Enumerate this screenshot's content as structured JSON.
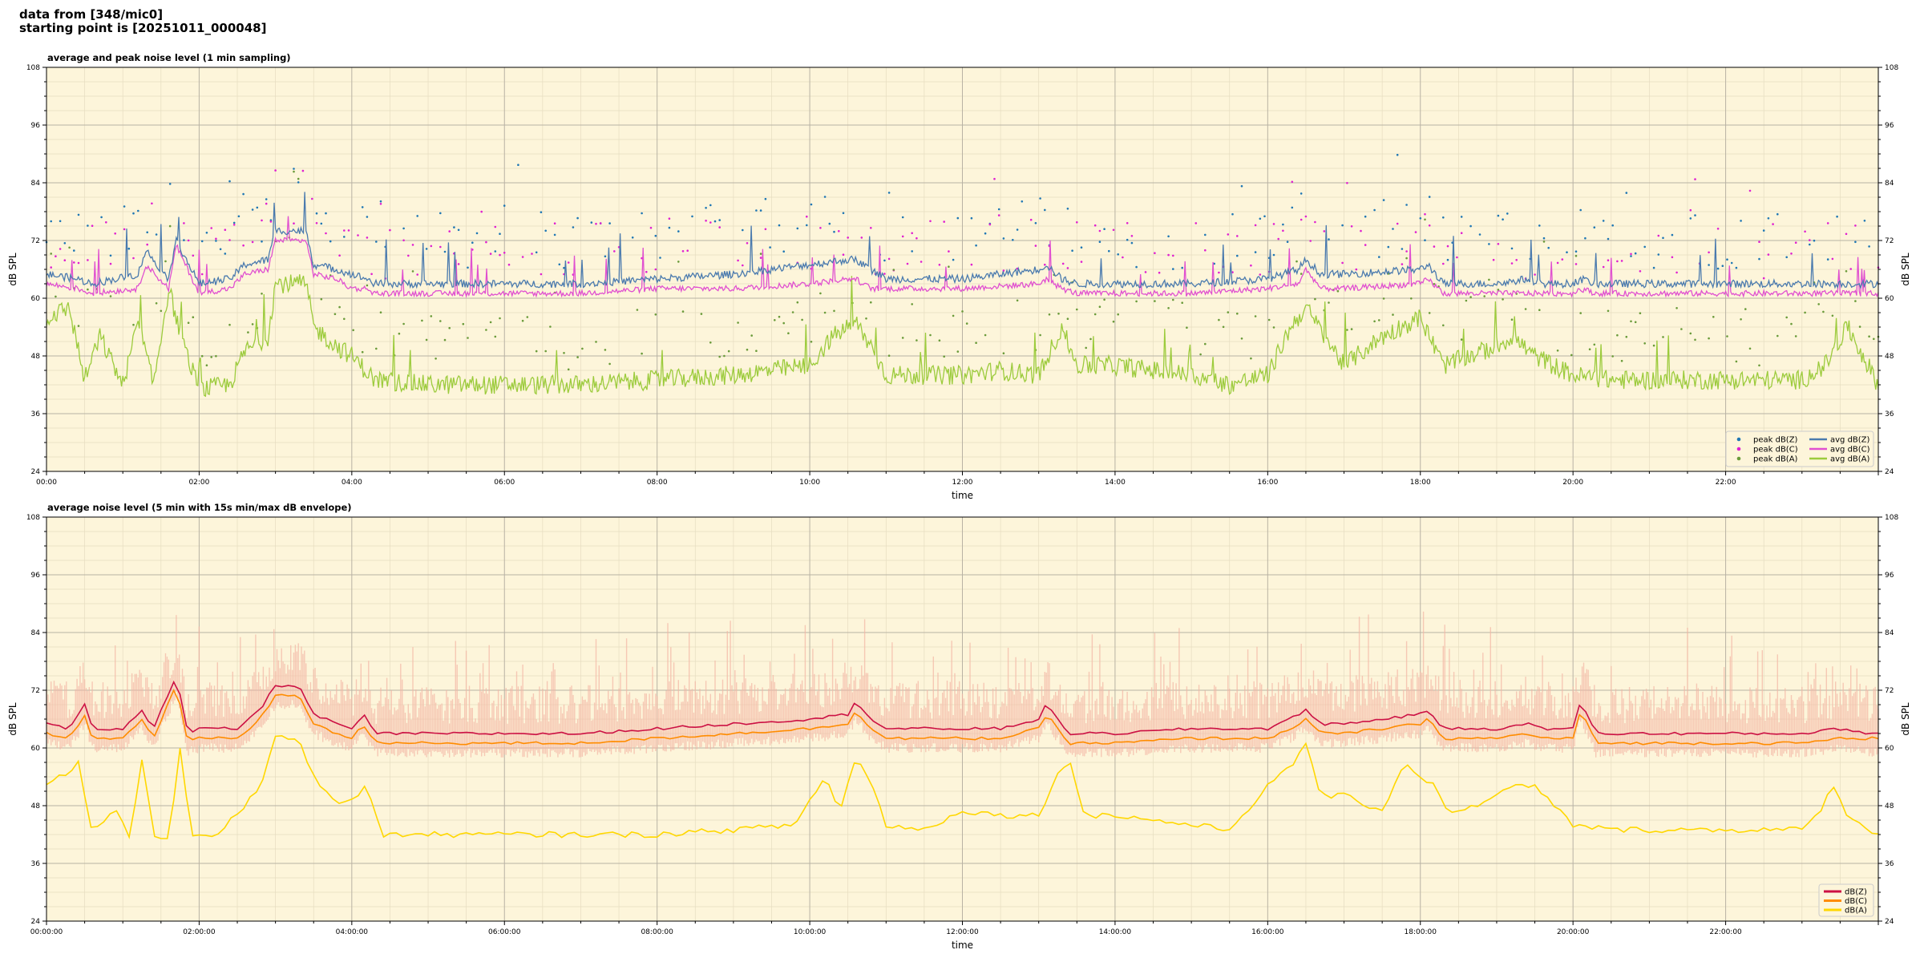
{
  "header": {
    "line1": "data from [348/mic0]",
    "line2": "starting point is [20251011_000048]"
  },
  "chart_data": [
    {
      "type": "line",
      "title": "average and peak noise level (1 min sampling)",
      "xlabel": "time",
      "ylabel": "dB SPL",
      "ylim": [
        24,
        108
      ],
      "xlim_hours": [
        0,
        24
      ],
      "yticks": [
        24,
        36,
        48,
        60,
        72,
        84,
        96,
        108
      ],
      "xtick_labels": [
        "00:00",
        "02:00",
        "04:00",
        "06:00",
        "08:00",
        "10:00",
        "12:00",
        "14:00",
        "16:00",
        "18:00",
        "20:00",
        "22:00"
      ],
      "grid": true,
      "background": "#fdf5da",
      "legend_position": "lower-right",
      "legend_columns": 2,
      "series": [
        {
          "name": "peak dB(Z)",
          "kind": "scatter",
          "color": "#1f77b4"
        },
        {
          "name": "peak dB(C)",
          "kind": "scatter",
          "color": "#e020d0"
        },
        {
          "name": "peak dB(A)",
          "kind": "scatter",
          "color": "#6a9b3a"
        },
        {
          "name": "avg dB(Z)",
          "kind": "line",
          "color": "#4a7aae"
        },
        {
          "name": "avg dB(C)",
          "kind": "line",
          "color": "#e050d0"
        },
        {
          "name": "avg dB(A)",
          "kind": "line",
          "color": "#9ccb3c"
        }
      ],
      "profiles": {
        "note_units": "x in hours since start, y in dB SPL (approximate readings)",
        "avg_dBZ": {
          "x": [
            0,
            0.4,
            0.6,
            1.2,
            1.3,
            1.6,
            1.7,
            2.0,
            2.4,
            2.6,
            2.9,
            3.0,
            3.4,
            3.5,
            3.8,
            4.0,
            4.2,
            4.3,
            5,
            6,
            7,
            8,
            9,
            10,
            10.5,
            10.6,
            10.8,
            11,
            12,
            13,
            13.1,
            13.3,
            13.5,
            14,
            15,
            16,
            16.4,
            16.5,
            16.7,
            17,
            18,
            18.1,
            18.3,
            19,
            19.4,
            19.6,
            20,
            20.1,
            20.3,
            20.5,
            21,
            22,
            23,
            23.5,
            23.9,
            24
          ],
          "y": [
            65,
            64,
            63,
            65,
            70,
            64,
            72,
            63,
            64,
            67,
            68,
            74,
            74,
            67,
            66,
            65,
            64,
            63,
            63,
            63,
            63,
            64,
            65,
            67,
            68,
            68,
            66,
            64,
            64,
            66,
            67,
            64,
            63,
            63,
            63,
            64,
            66,
            68,
            65,
            65,
            66,
            67,
            63,
            63,
            64,
            63,
            63,
            64,
            63,
            63,
            63,
            63,
            63,
            63,
            63,
            63
          ]
        },
        "avg_dBC": {
          "x": [
            0,
            0.4,
            0.6,
            1.2,
            1.3,
            1.6,
            1.7,
            2.0,
            2.4,
            2.6,
            2.9,
            3.0,
            3.4,
            3.5,
            3.8,
            4.0,
            4.2,
            4.3,
            5,
            6,
            7,
            8,
            9,
            10,
            10.5,
            10.6,
            10.8,
            11,
            12,
            13,
            13.1,
            13.3,
            13.5,
            14,
            15,
            16,
            16.4,
            16.5,
            16.7,
            17,
            18,
            18.1,
            18.3,
            19,
            19.4,
            19.6,
            20,
            20.1,
            20.3,
            20.5,
            21,
            22,
            23,
            23.5,
            23.9,
            24
          ],
          "y": [
            63,
            62,
            61,
            62,
            67,
            62,
            71,
            61,
            62,
            65,
            66,
            72,
            72,
            65,
            64,
            62,
            62,
            61,
            61,
            61,
            61,
            62,
            62,
            63,
            64,
            64,
            62,
            62,
            62,
            63,
            64,
            62,
            61,
            61,
            61,
            62,
            63,
            66,
            62,
            62,
            63,
            64,
            61,
            61,
            61,
            61,
            61,
            62,
            61,
            61,
            61,
            61,
            61,
            61,
            61,
            61
          ]
        },
        "avg_dBA": {
          "x": [
            0,
            0.3,
            0.5,
            0.7,
            1.0,
            1.2,
            1.4,
            1.6,
            1.8,
            2.0,
            2.4,
            2.6,
            2.9,
            3.0,
            3.4,
            3.5,
            3.8,
            4.0,
            4.3,
            5,
            6,
            7,
            8,
            9,
            10,
            10.3,
            10.6,
            10.8,
            11,
            12,
            12.5,
            13,
            13.3,
            13.5,
            14,
            15,
            15.5,
            16,
            16.3,
            16.5,
            17,
            17.5,
            18,
            18.3,
            19,
            19.2,
            19.5,
            20,
            20.5,
            21,
            22,
            23,
            23.3,
            23.6,
            24
          ],
          "y": [
            56,
            58,
            43,
            52,
            42,
            55,
            42,
            62,
            50,
            41,
            42,
            49,
            52,
            63,
            63,
            54,
            50,
            48,
            43,
            42,
            42,
            42,
            43,
            44,
            46,
            52,
            55,
            50,
            44,
            44,
            45,
            44,
            54,
            46,
            46,
            44,
            42,
            44,
            54,
            58,
            46,
            52,
            56,
            46,
            50,
            52,
            48,
            44,
            43,
            43,
            43,
            43,
            46,
            54,
            42
          ]
        }
      }
    },
    {
      "type": "line",
      "title": "average noise level (5 min with 15s min/max dB envelope)",
      "xlabel": "time",
      "ylabel": "dB SPL",
      "ylim": [
        24,
        108
      ],
      "xlim_hours": [
        0,
        24
      ],
      "yticks": [
        24,
        36,
        48,
        60,
        72,
        84,
        96,
        108
      ],
      "xtick_labels": [
        "00:00:00",
        "02:00:00",
        "04:00:00",
        "06:00:00",
        "08:00:00",
        "10:00:00",
        "12:00:00",
        "14:00:00",
        "16:00:00",
        "18:00:00",
        "20:00:00",
        "22:00:00"
      ],
      "grid": true,
      "background": "#fdf5da",
      "legend_position": "lower-right",
      "legend_columns": 1,
      "envelope_color": "#f4b6a4",
      "series": [
        {
          "name": "dB(Z)",
          "kind": "line",
          "color": "#cc1144"
        },
        {
          "name": "dB(C)",
          "kind": "line",
          "color": "#ff8c00"
        },
        {
          "name": "dB(A)",
          "kind": "line",
          "color": "#ffd700"
        }
      ],
      "profiles": {
        "note_units": "x in hours since start, y in dB SPL (approximate readings)",
        "dBZ": {
          "x": [
            0,
            0.3,
            0.5,
            0.6,
            1.0,
            1.25,
            1.4,
            1.7,
            1.85,
            2.0,
            2.5,
            2.8,
            3.0,
            3.3,
            3.5,
            3.8,
            4.0,
            4.15,
            4.3,
            5,
            6,
            7,
            8,
            9,
            10,
            10.5,
            10.6,
            10.8,
            11,
            12,
            12.5,
            13,
            13.1,
            13.4,
            13.6,
            14,
            15,
            16,
            16.3,
            16.5,
            16.7,
            17,
            18,
            18.1,
            18.3,
            19,
            19.4,
            19.6,
            20,
            20.1,
            20.3,
            20.5,
            21,
            22,
            23,
            23.5,
            23.9,
            24
          ],
          "y": [
            65,
            64,
            69,
            64,
            64,
            68,
            64,
            75,
            63,
            64,
            64,
            68,
            73,
            73,
            67,
            65,
            64,
            67,
            63,
            63,
            63,
            63,
            64,
            65,
            66,
            67,
            70,
            66,
            64,
            64,
            64,
            66,
            69,
            63,
            63,
            63,
            64,
            64,
            66,
            68,
            65,
            65,
            67,
            68,
            64,
            64,
            65,
            64,
            64,
            70,
            63,
            63,
            63,
            63,
            63,
            64,
            63,
            63
          ]
        },
        "dBC": {
          "x": [
            0,
            0.3,
            0.5,
            0.6,
            1.0,
            1.25,
            1.4,
            1.7,
            1.85,
            2.0,
            2.5,
            2.8,
            3.0,
            3.3,
            3.5,
            3.8,
            4.0,
            4.15,
            4.3,
            5,
            6,
            7,
            8,
            9,
            10,
            10.5,
            10.6,
            10.8,
            11,
            12,
            12.5,
            13,
            13.1,
            13.4,
            13.6,
            14,
            15,
            16,
            16.3,
            16.5,
            16.7,
            17,
            18,
            18.1,
            18.3,
            19,
            19.4,
            19.6,
            20,
            20.1,
            20.3,
            20.5,
            21,
            22,
            23,
            23.5,
            23.9,
            24
          ],
          "y": [
            63,
            62,
            67,
            62,
            62,
            66,
            62,
            73,
            61,
            62,
            62,
            66,
            71,
            71,
            65,
            63,
            62,
            65,
            61,
            61,
            61,
            61,
            62,
            63,
            64,
            65,
            68,
            64,
            62,
            62,
            62,
            64,
            67,
            61,
            61,
            61,
            62,
            62,
            64,
            66,
            63,
            63,
            65,
            66,
            62,
            62,
            63,
            62,
            62,
            68,
            61,
            61,
            61,
            61,
            61,
            62,
            62,
            62
          ]
        },
        "dBA": {
          "x": [
            0,
            0.2,
            0.3,
            0.4,
            0.6,
            0.9,
            1.1,
            1.25,
            1.4,
            1.6,
            1.75,
            1.9,
            2.2,
            2.5,
            2.8,
            3.0,
            3.3,
            3.5,
            3.8,
            4.0,
            4.2,
            4.4,
            5,
            6,
            7,
            8,
            9,
            9.8,
            10.2,
            10.4,
            10.6,
            10.8,
            11,
            11.5,
            12,
            12.5,
            13,
            13.2,
            13.4,
            13.6,
            14,
            15,
            15.5,
            16,
            16.3,
            16.5,
            16.7,
            17,
            17.5,
            17.8,
            18,
            18.2,
            18.4,
            19,
            19.2,
            19.5,
            20,
            20.5,
            21,
            22,
            23,
            23.2,
            23.4,
            23.6,
            24
          ],
          "y": [
            52,
            55,
            54,
            58,
            42,
            48,
            41,
            58,
            42,
            41,
            60,
            42,
            42,
            46,
            52,
            62,
            62,
            54,
            49,
            49,
            52,
            42,
            42,
            42,
            42,
            42,
            43,
            44,
            54,
            47,
            58,
            53,
            44,
            43,
            47,
            46,
            46,
            53,
            58,
            46,
            46,
            44,
            43,
            52,
            56,
            61,
            50,
            50,
            47,
            57,
            54,
            52,
            46,
            50,
            52,
            52,
            44,
            43,
            43,
            43,
            43,
            46,
            52,
            46,
            42
          ]
        }
      }
    }
  ]
}
